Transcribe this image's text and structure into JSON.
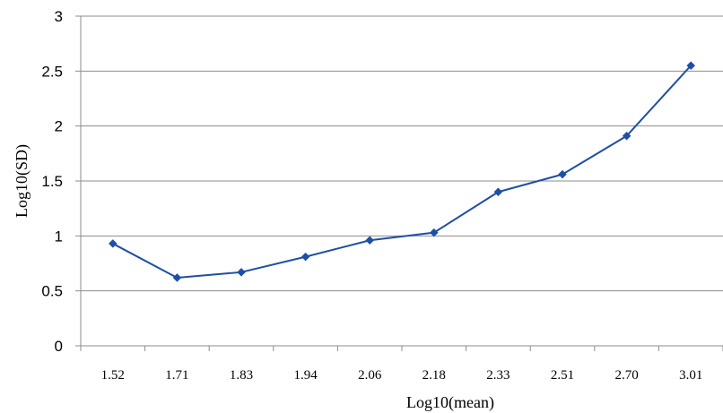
{
  "chart_data": {
    "type": "line",
    "title": "",
    "xlabel": "Log10(mean)",
    "ylabel": "Log10(SD)",
    "categories": [
      "1.52",
      "1.71",
      "1.83",
      "1.94",
      "2.06",
      "2.18",
      "2.33",
      "2.51",
      "2.70",
      "3.01"
    ],
    "series": [
      {
        "values": [
          0.93,
          0.62,
          0.67,
          0.81,
          0.96,
          1.03,
          1.4,
          1.56,
          1.91,
          2.55
        ]
      }
    ],
    "ylim": [
      0,
      3
    ],
    "yticks": [
      "0",
      "0.5",
      "1",
      "1.5",
      "2",
      "2.5",
      "3"
    ],
    "grid": "horizontal",
    "legend": "none",
    "colors": {
      "series": "#1f4fa3",
      "marker": "#1f4fa3",
      "grid": "#8c8c8c"
    }
  }
}
